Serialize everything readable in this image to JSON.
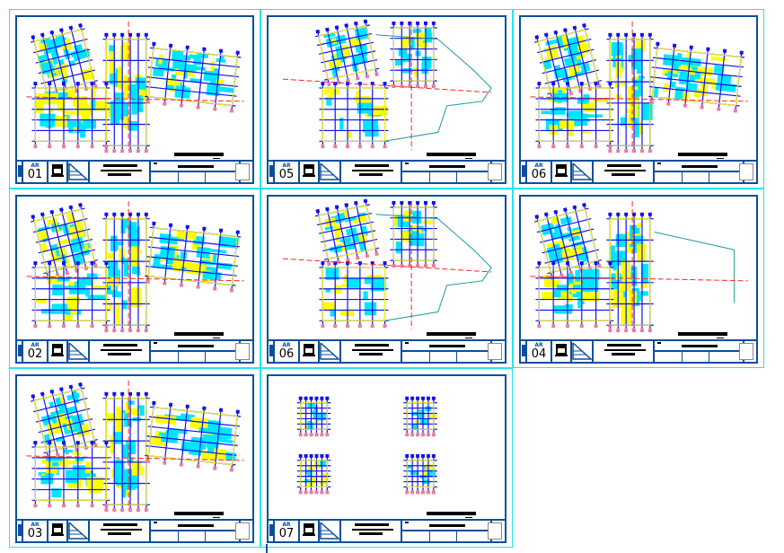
{
  "colors": {
    "viewport_border": "#22e6f0",
    "sheet_border": "#0a4f9c",
    "grid": "#1010ee",
    "wall": "#ffff00",
    "room": "#00e5ff",
    "axis": "#ff2020",
    "outline": "#169b9b"
  },
  "sheets": [
    {
      "prefix": "AR",
      "number": "01",
      "plan": "full-floor"
    },
    {
      "prefix": "AR",
      "number": "05",
      "plan": "upper-block"
    },
    {
      "prefix": "AR",
      "number": "06",
      "plan": "detailed-floor"
    },
    {
      "prefix": "AR",
      "number": "02",
      "plan": "full-floor"
    },
    {
      "prefix": "AR",
      "number": "06",
      "plan": "upper-block"
    },
    {
      "prefix": "AR",
      "number": "04",
      "plan": "partial-floor"
    },
    {
      "prefix": "AR",
      "number": "03",
      "plan": "full-floor"
    },
    {
      "prefix": "AR",
      "number": "07",
      "plan": "four-units"
    }
  ]
}
